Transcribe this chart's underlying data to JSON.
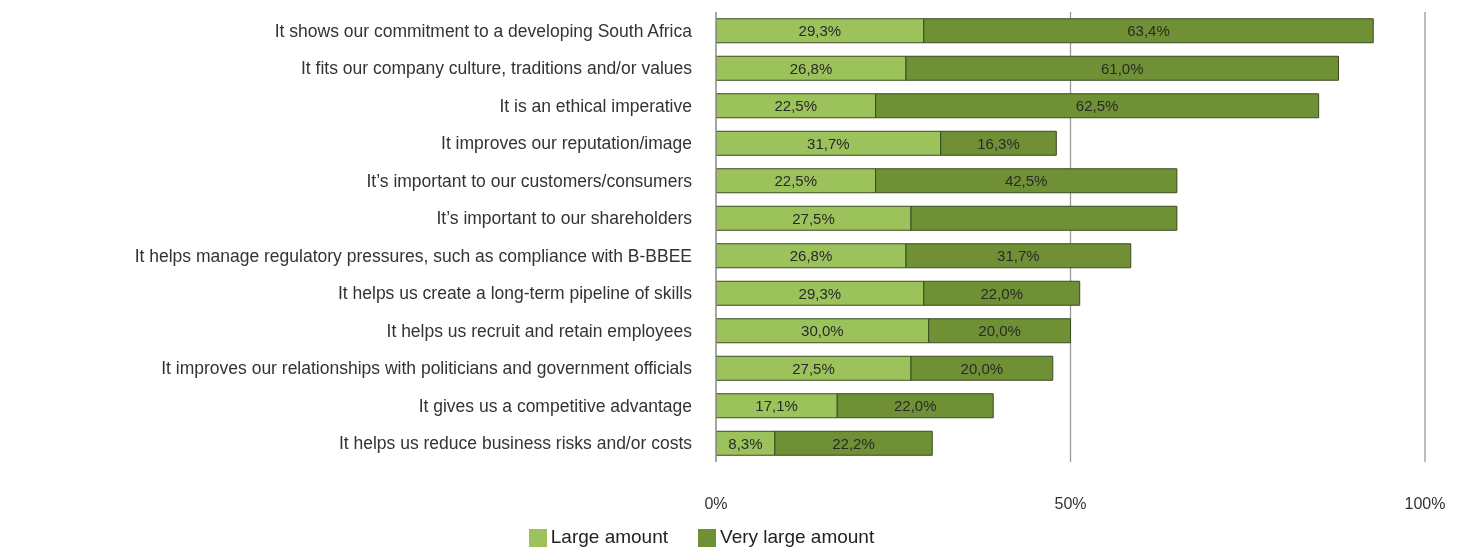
{
  "chart_data": {
    "type": "bar",
    "orientation": "horizontal",
    "stacked": true,
    "categories": [
      "It shows our commitment to a developing South Africa",
      "It fits our company culture, traditions and/or values",
      "It is an ethical imperative",
      "It improves our reputation/image",
      "It’s important to our customers/consumers",
      "It’s important to our shareholders",
      "It helps manage regulatory pressures, such as compliance with B-BBEE",
      "It helps us create a long-term pipeline of skills",
      "It helps us recruit and retain employees",
      "It improves our relationships with politicians and government officials",
      "It gives us a competitive advantage",
      "It helps us reduce business risks and/or costs"
    ],
    "series": [
      {
        "name": "Large amount",
        "color": "#9bc25b",
        "values": [
          29.3,
          26.8,
          22.5,
          31.7,
          22.5,
          27.5,
          26.8,
          29.3,
          30.0,
          27.5,
          17.1,
          8.3
        ],
        "value_labels": [
          "29,3%",
          "26,8%",
          "22,5%",
          "31,7%",
          "22,5%",
          "27,5%",
          "26,8%",
          "29,3%",
          "30,0%",
          "27,5%",
          "17,1%",
          "8,3%"
        ]
      },
      {
        "name": "Very large amount",
        "color": "#6f9034",
        "values": [
          63.4,
          61.0,
          62.5,
          16.3,
          42.5,
          37.5,
          31.7,
          22.0,
          20.0,
          20.0,
          22.0,
          22.2
        ],
        "value_labels": [
          "63,4%",
          "61,0%",
          "62,5%",
          "16,3%",
          "42,5%",
          null,
          "31,7%",
          "22,0%",
          "20,0%",
          "20,0%",
          "22,0%",
          "22,2%"
        ]
      }
    ],
    "xlim": [
      0,
      100
    ],
    "xticks": [
      {
        "value": 0,
        "label": "0%"
      },
      {
        "value": 50,
        "label": "50%"
      },
      {
        "value": 100,
        "label": "100%"
      }
    ],
    "grid": "x",
    "legend": "bottom"
  }
}
